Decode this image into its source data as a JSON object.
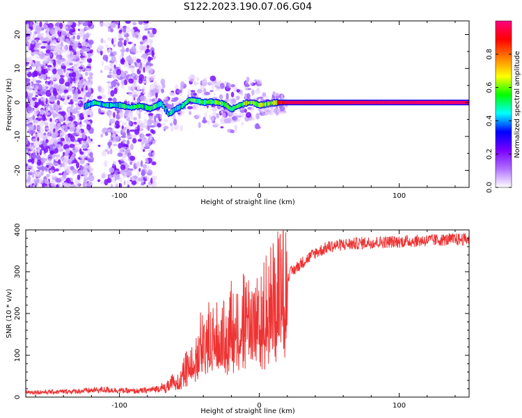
{
  "figure": {
    "title": "S122.2023.190.07.06.G04"
  },
  "chart_data": [
    {
      "type": "heatmap",
      "xlabel": "Height of straight line (km)",
      "ylabel": "Frequency (Hz)",
      "xlim": [
        -167,
        150
      ],
      "ylim": [
        -25,
        24
      ],
      "xticks": [
        -100,
        0,
        100
      ],
      "yticks": [
        -20,
        -10,
        0,
        10,
        20
      ],
      "colorbar": {
        "label": "Normalized spectral amplitude",
        "range": [
          0,
          1
        ],
        "ticks": [
          "0.0",
          "0.2",
          "0.4",
          "0.6",
          "0.8"
        ],
        "colormap": [
          "#ffffff",
          "#b070ff",
          "#7a00ff",
          "#0000ff",
          "#00ffff",
          "#00ff00",
          "#ffff00",
          "#ff8000",
          "#ff0000",
          "#ff0080"
        ]
      },
      "main_line": {
        "x": [
          -125,
          -118,
          -110,
          -100,
          -92,
          -85,
          -78,
          -70,
          -65,
          -60,
          -55,
          -50,
          -45,
          -40,
          -35,
          -30,
          -25,
          -20,
          -15,
          -10,
          -5,
          0,
          5,
          10,
          15,
          20,
          150
        ],
        "y": [
          -1.2,
          0,
          -0.8,
          -0.8,
          -1.5,
          -1.0,
          -1.8,
          -0.3,
          -3.5,
          -2.0,
          -1.0,
          0.8,
          0.5,
          0.0,
          0.2,
          0.0,
          -0.5,
          -2.0,
          -1.0,
          -0.2,
          0.0,
          -0.8,
          -0.5,
          -0.1,
          0.0,
          0.0,
          0.0
        ],
        "amplitude": [
          0.35,
          0.5,
          0.45,
          0.45,
          0.5,
          0.5,
          0.5,
          0.5,
          0.45,
          0.5,
          0.5,
          0.55,
          0.55,
          0.5,
          0.55,
          0.55,
          0.55,
          0.5,
          0.55,
          0.6,
          0.6,
          0.6,
          0.6,
          0.65,
          0.85,
          0.95,
          0.98
        ]
      }
    },
    {
      "type": "line",
      "xlabel": "Height of straight line (km)",
      "ylabel": "SNR (10 * v/v)",
      "xlim": [
        -167,
        150
      ],
      "ylim": [
        0,
        400
      ],
      "xticks": [
        -100,
        0,
        100
      ],
      "yticks": [
        0,
        100,
        200,
        300,
        400
      ],
      "series": [
        {
          "color": "#ee3333",
          "x": [
            -167,
            -150,
            -130,
            -110,
            -100,
            -90,
            -80,
            -70,
            -65,
            -60,
            -55,
            -50,
            -45,
            -40,
            -35,
            -30,
            -25,
            -20,
            -15,
            -10,
            -5,
            0,
            5,
            10,
            15,
            20,
            25,
            30,
            40,
            50,
            60,
            80,
            100,
            120,
            150
          ],
          "y": [
            12,
            12,
            14,
            18,
            16,
            14,
            16,
            22,
            30,
            40,
            60,
            80,
            110,
            150,
            150,
            150,
            150,
            190,
            185,
            200,
            190,
            200,
            225,
            250,
            270,
            290,
            305,
            320,
            345,
            360,
            365,
            370,
            372,
            375,
            378
          ]
        }
      ]
    }
  ]
}
